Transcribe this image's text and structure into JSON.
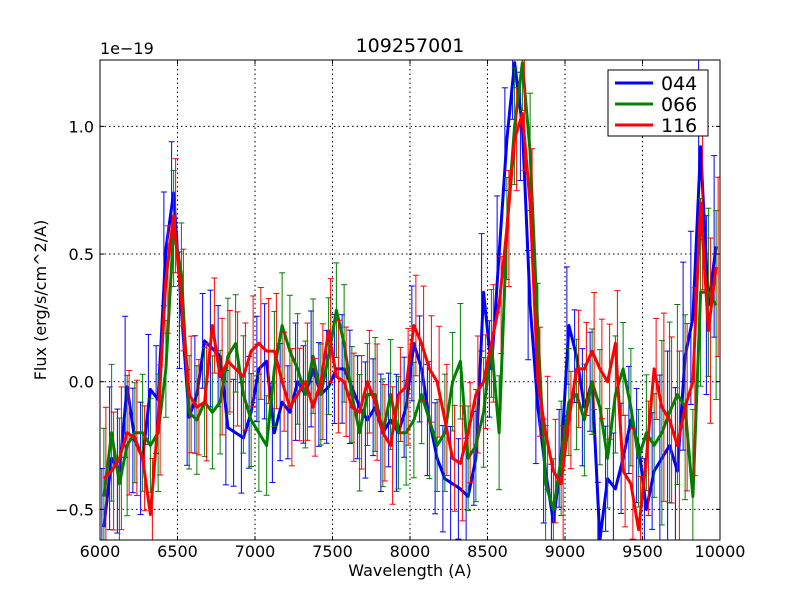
{
  "chart_data": {
    "type": "line",
    "title": "109257001",
    "xlabel": "Wavelength (A)",
    "ylabel": "Flux (erg/s/cm^2/A)",
    "offset_text": "1e−19",
    "xlim": [
      6000,
      10000
    ],
    "ylim": [
      -0.62,
      1.26
    ],
    "xticks": [
      6000,
      6500,
      7000,
      7500,
      8000,
      8500,
      9000,
      9500,
      10000
    ],
    "xtick_labels": [
      "6000",
      "6500",
      "7000",
      "7500",
      "8000",
      "8500",
      "9000",
      "9500",
      "10000"
    ],
    "yticks": [
      -0.5,
      0.0,
      0.5,
      1.0
    ],
    "ytick_labels": [
      "−0.5",
      "0.0",
      "0.5",
      "1.0"
    ],
    "grid": true,
    "legend_position": "top-right",
    "series": [
      {
        "name": "044",
        "color": "#0000ff",
        "x": [
          6025,
          6075,
          6125,
          6175,
          6225,
          6275,
          6325,
          6375,
          6425,
          6475,
          6525,
          6575,
          6625,
          6675,
          6725,
          6775,
          6825,
          6875,
          6925,
          6975,
          7025,
          7075,
          7125,
          7175,
          7225,
          7275,
          7325,
          7375,
          7425,
          7475,
          7525,
          7575,
          7625,
          7675,
          7725,
          7775,
          7825,
          7875,
          7925,
          7975,
          8025,
          8075,
          8125,
          8175,
          8225,
          8275,
          8325,
          8375,
          8425,
          8475,
          8525,
          8575,
          8625,
          8675,
          8725,
          8775,
          8825,
          8875,
          8925,
          8975,
          9025,
          9075,
          9125,
          9175,
          9225,
          9275,
          9325,
          9375,
          9425,
          9475,
          9525,
          9575,
          9625,
          9675,
          9725,
          9775,
          9825,
          9875,
          9925,
          9975
        ],
        "y": [
          -0.57,
          -0.3,
          -0.35,
          -0.02,
          -0.23,
          -0.3,
          -0.03,
          -0.07,
          0.52,
          0.74,
          0.28,
          -0.14,
          -0.05,
          0.16,
          0.13,
          0.1,
          -0.18,
          -0.2,
          -0.22,
          -0.12,
          0.05,
          0.08,
          -0.2,
          -0.08,
          -0.12,
          0.0,
          -0.05,
          0.05,
          -0.05,
          -0.02,
          0.05,
          0.05,
          -0.02,
          -0.1,
          -0.15,
          -0.1,
          -0.2,
          -0.15,
          -0.2,
          -0.1,
          0.15,
          0.05,
          -0.15,
          -0.3,
          -0.38,
          -0.4,
          -0.42,
          -0.45,
          -0.3,
          0.35,
          0.05,
          0.5,
          0.95,
          1.25,
          1.0,
          0.3,
          -0.1,
          -0.35,
          -0.55,
          -0.3,
          0.22,
          0.1,
          -0.1,
          0.0,
          -0.62,
          -0.38,
          -0.42,
          -0.3,
          -0.15,
          -0.25,
          -0.5,
          -0.35,
          -0.3,
          -0.25,
          -0.35,
          0.1,
          0.25,
          0.92,
          0.3,
          0.53
        ]
      },
      {
        "name": "066",
        "color": "#008000",
        "x": [
          6025,
          6075,
          6125,
          6175,
          6225,
          6275,
          6325,
          6375,
          6425,
          6475,
          6525,
          6575,
          6625,
          6675,
          6725,
          6775,
          6825,
          6875,
          6925,
          6975,
          7025,
          7075,
          7125,
          7175,
          7225,
          7275,
          7325,
          7375,
          7425,
          7475,
          7525,
          7575,
          7625,
          7675,
          7725,
          7775,
          7825,
          7875,
          7925,
          7975,
          8025,
          8075,
          8125,
          8175,
          8225,
          8275,
          8325,
          8375,
          8425,
          8475,
          8525,
          8575,
          8625,
          8675,
          8725,
          8775,
          8825,
          8875,
          8925,
          8975,
          9025,
          9075,
          9125,
          9175,
          9225,
          9275,
          9325,
          9375,
          9425,
          9475,
          9525,
          9575,
          9625,
          9675,
          9725,
          9775,
          9825,
          9875,
          9925,
          9975
        ],
        "y": [
          -0.45,
          -0.2,
          -0.4,
          -0.25,
          -0.2,
          -0.2,
          -0.25,
          -0.2,
          0.05,
          0.6,
          0.42,
          -0.12,
          -0.15,
          -0.08,
          -0.12,
          -0.08,
          0.1,
          0.15,
          -0.05,
          -0.15,
          -0.2,
          -0.25,
          0.05,
          0.22,
          0.12,
          0.05,
          -0.05,
          0.1,
          -0.05,
          0.1,
          0.28,
          0.15,
          -0.05,
          -0.2,
          -0.05,
          -0.05,
          -0.2,
          -0.05,
          -0.2,
          -0.2,
          -0.15,
          -0.05,
          -0.15,
          -0.25,
          -0.2,
          0.0,
          0.08,
          -0.3,
          -0.25,
          -0.12,
          0.15,
          -0.2,
          0.6,
          1.0,
          1.25,
          0.9,
          0.2,
          -0.4,
          -0.5,
          -0.3,
          -0.08,
          -0.05,
          -0.15,
          0.0,
          -0.1,
          -0.3,
          -0.05,
          0.05,
          -0.1,
          -0.3,
          -0.2,
          -0.25,
          -0.2,
          -0.12,
          -0.05,
          -0.1,
          -0.45,
          0.35,
          0.35,
          0.3
        ]
      },
      {
        "name": "116",
        "color": "#ff0000",
        "x": [
          6025,
          6075,
          6125,
          6175,
          6225,
          6275,
          6325,
          6375,
          6425,
          6475,
          6525,
          6575,
          6625,
          6675,
          6725,
          6775,
          6825,
          6875,
          6925,
          6975,
          7025,
          7075,
          7125,
          7175,
          7225,
          7275,
          7325,
          7375,
          7425,
          7475,
          7525,
          7575,
          7625,
          7675,
          7725,
          7775,
          7825,
          7875,
          7925,
          7975,
          8025,
          8075,
          8125,
          8175,
          8225,
          8275,
          8325,
          8375,
          8425,
          8475,
          8525,
          8575,
          8625,
          8675,
          8725,
          8775,
          8825,
          8875,
          8925,
          8975,
          9025,
          9075,
          9125,
          9175,
          9225,
          9275,
          9325,
          9375,
          9425,
          9475,
          9525,
          9575,
          9625,
          9675,
          9725,
          9775,
          9825,
          9875,
          9925,
          9975
        ],
        "y": [
          -0.38,
          -0.35,
          -0.3,
          -0.2,
          -0.22,
          -0.3,
          -0.52,
          -0.15,
          0.4,
          0.65,
          0.32,
          -0.05,
          -0.1,
          -0.08,
          0.22,
          0.02,
          0.08,
          0.05,
          0.02,
          0.12,
          0.15,
          0.12,
          0.12,
          0.0,
          -0.1,
          -0.05,
          0.0,
          -0.1,
          0.0,
          0.2,
          0.02,
          0.0,
          -0.1,
          -0.12,
          0.0,
          -0.08,
          -0.2,
          -0.25,
          -0.05,
          -0.02,
          0.22,
          0.15,
          0.05,
          0.0,
          -0.15,
          -0.3,
          -0.32,
          -0.2,
          -0.05,
          0.0,
          0.15,
          0.3,
          0.6,
          0.95,
          1.05,
          0.7,
          0.0,
          -0.2,
          -0.35,
          -0.4,
          -0.15,
          0.05,
          0.05,
          0.12,
          0.05,
          0.0,
          0.15,
          -0.35,
          -0.4,
          -0.58,
          -0.3,
          0.05,
          -0.1,
          -0.15,
          -0.25,
          -0.1,
          0.0,
          0.7,
          0.2,
          0.45
        ]
      }
    ]
  }
}
